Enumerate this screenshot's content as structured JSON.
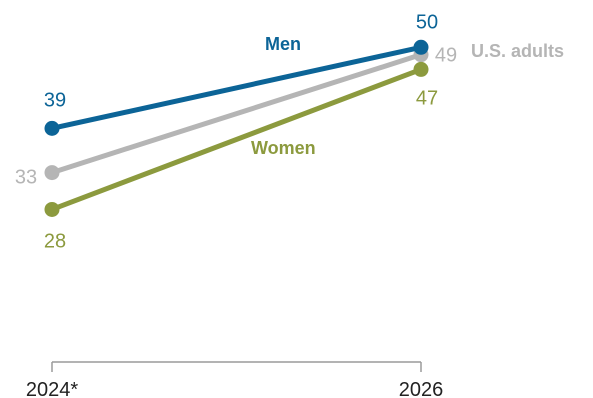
{
  "chart_data": {
    "type": "line",
    "x": [
      "2024*",
      "2026"
    ],
    "ylim": [
      0,
      60
    ],
    "grid": false,
    "legend": "inline labels",
    "series": [
      {
        "name": "Men",
        "values": [
          39,
          50
        ],
        "color": "#0c6497"
      },
      {
        "name": "U.S. adults",
        "values": [
          33,
          49
        ],
        "color": "#b5b5b5"
      },
      {
        "name": "Women",
        "values": [
          28,
          47
        ],
        "color": "#8c9a3e"
      }
    ]
  }
}
